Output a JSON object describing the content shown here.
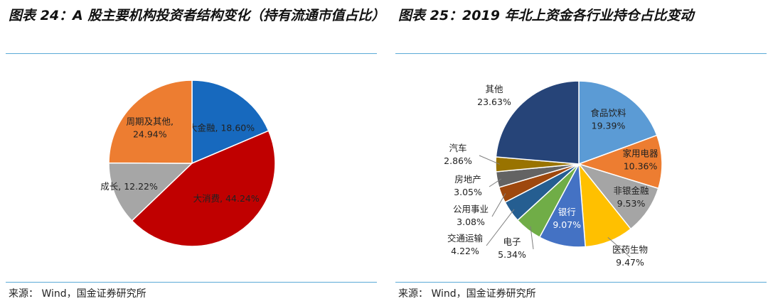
{
  "left": {
    "title": "图表 24：A 股主要机构投资者结构变化（持有流通市值占比）",
    "source": "来源：  Wind，国金证券研究所"
  },
  "right": {
    "title": "图表 25：2019 年北上资金各行业持仓占比变动",
    "source": "来源：  Wind，国金证券研究所"
  },
  "chart_data": [
    {
      "type": "pie",
      "title": "图表 24：A 股主要机构投资者结构变化（持有流通市值占比）",
      "slices": [
        {
          "label": "大金融",
          "value": 18.6,
          "display": "18.60%",
          "color": "#1769be"
        },
        {
          "label": "大消费",
          "value": 44.24,
          "display": "44.24%",
          "color": "#c00000"
        },
        {
          "label": "成长",
          "value": 12.22,
          "display": "12.22%",
          "color": "#a6a6a6"
        },
        {
          "label": "周期及其他",
          "value": 24.94,
          "display": "24.94%",
          "color": "#ed7d31"
        }
      ]
    },
    {
      "type": "pie",
      "title": "图表 25：2019 年北上资金各行业持仓占比变动",
      "slices": [
        {
          "label": "食品饮料",
          "value": 19.39,
          "display": "19.39%",
          "color": "#5b9bd5"
        },
        {
          "label": "家用电器",
          "value": 10.36,
          "display": "10.36%",
          "color": "#ed7d31"
        },
        {
          "label": "非银金融",
          "value": 9.53,
          "display": "9.53%",
          "color": "#a5a5a5"
        },
        {
          "label": "医药生物",
          "value": 9.47,
          "display": "9.47%",
          "color": "#ffc000"
        },
        {
          "label": "银行",
          "value": 9.07,
          "display": "9.07%",
          "color": "#4472c4"
        },
        {
          "label": "电子",
          "value": 5.34,
          "display": "5.34%",
          "color": "#70ad47"
        },
        {
          "label": "交通运输",
          "value": 4.22,
          "display": "4.22%",
          "color": "#255e91"
        },
        {
          "label": "公用事业",
          "value": 3.08,
          "display": "3.08%",
          "color": "#9e480e"
        },
        {
          "label": "房地产",
          "value": 3.05,
          "display": "3.05%",
          "color": "#636363"
        },
        {
          "label": "汽车",
          "value": 2.86,
          "display": "2.86%",
          "color": "#997300"
        },
        {
          "label": "其他",
          "value": 23.63,
          "display": "23.63%",
          "color": "#264478"
        }
      ]
    }
  ]
}
